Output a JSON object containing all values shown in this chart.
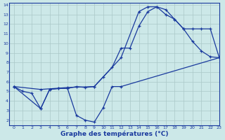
{
  "title": "Graphe des températures (°C)",
  "background_color": "#cce8e8",
  "line_color": "#1a3a9e",
  "grid_color": "#aac8c8",
  "xlim": [
    -0.5,
    23
  ],
  "ylim": [
    1.5,
    14.2
  ],
  "xticks": [
    0,
    1,
    2,
    3,
    4,
    5,
    6,
    7,
    8,
    9,
    10,
    11,
    12,
    13,
    14,
    15,
    16,
    17,
    18,
    19,
    20,
    21,
    22,
    23
  ],
  "yticks": [
    2,
    3,
    4,
    5,
    6,
    7,
    8,
    9,
    10,
    11,
    12,
    13,
    14
  ],
  "series": {
    "line1": {
      "x": [
        0,
        1,
        2,
        3,
        4,
        5,
        6,
        7,
        8,
        9,
        10,
        11,
        12,
        13,
        14,
        15,
        16,
        17,
        18,
        19,
        20,
        21,
        22,
        23
      ],
      "y": [
        5.5,
        5.0,
        4.8,
        3.2,
        5.2,
        5.3,
        5.3,
        5.5,
        5.4,
        5.5,
        6.5,
        7.5,
        9.5,
        9.5,
        11.8,
        13.3,
        13.8,
        13.5,
        12.5,
        11.5,
        10.2,
        9.2,
        8.6,
        8.5
      ]
    },
    "line2": {
      "x": [
        0,
        3,
        6,
        9,
        12,
        14,
        15,
        16,
        17,
        18,
        19,
        20,
        21,
        22,
        23
      ],
      "y": [
        5.5,
        5.2,
        5.4,
        5.5,
        8.5,
        13.3,
        13.8,
        13.8,
        13.0,
        12.5,
        11.5,
        11.5,
        11.5,
        11.5,
        8.5
      ]
    },
    "line3": {
      "x": [
        0,
        3,
        4,
        5,
        6,
        7,
        8,
        9,
        10,
        11,
        12,
        23
      ],
      "y": [
        5.5,
        3.2,
        5.2,
        5.3,
        5.3,
        2.5,
        2.0,
        1.8,
        3.3,
        5.5,
        5.5,
        8.5
      ]
    }
  }
}
